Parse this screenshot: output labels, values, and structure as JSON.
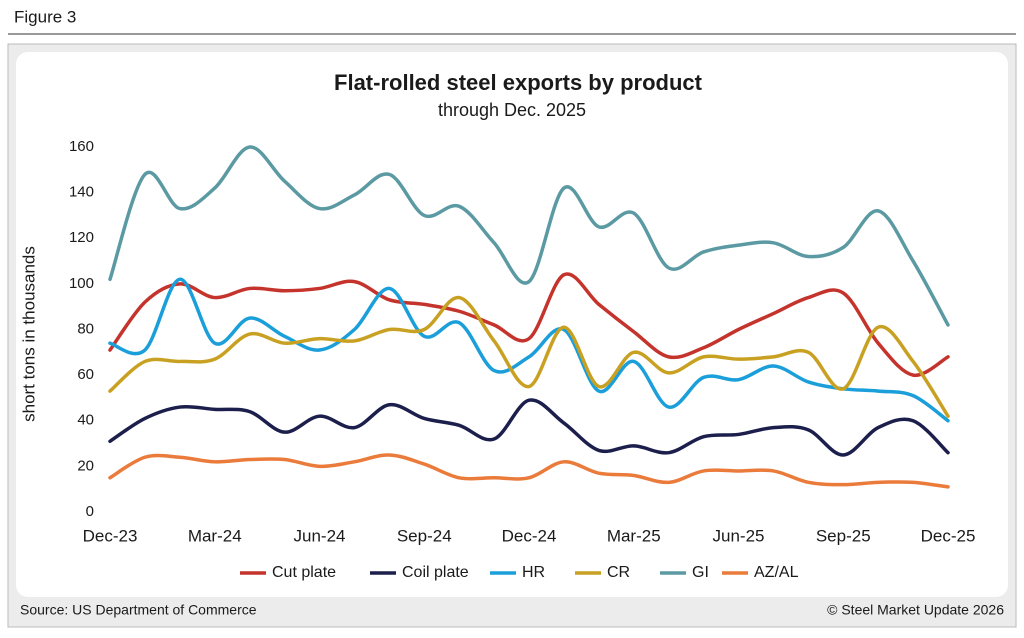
{
  "figure_label": "Figure 3",
  "source": "Source: US Department of Commerce",
  "copyright": "© Steel Market Update 2026",
  "chart_data": {
    "type": "line",
    "title": "Flat-rolled steel exports by product",
    "subtitle": "through Dec. 2025",
    "y_label": "short tons in thousands",
    "categories": [
      "Dec-23",
      null,
      null,
      "Mar-24",
      null,
      null,
      "Jun-24",
      null,
      null,
      "Sep-24",
      null,
      null,
      "Dec-24",
      null,
      null,
      "Mar-25",
      null,
      null,
      "Jun-25",
      null,
      null,
      "Sep-25",
      null,
      null,
      "Dec-25"
    ],
    "ylim": [
      0,
      160
    ],
    "yticks": [
      0,
      20,
      40,
      60,
      80,
      100,
      120,
      140,
      160
    ],
    "grid": false,
    "legend": "bottom",
    "series": [
      {
        "name": "Cut plate",
        "color": "#c5342c",
        "values": [
          71,
          92,
          100,
          94,
          98,
          97,
          98,
          101,
          93,
          91,
          88,
          82,
          76,
          104,
          91,
          79,
          68,
          72,
          80,
          87,
          94,
          96,
          74,
          60,
          68
        ]
      },
      {
        "name": "Coil plate",
        "color": "#1c1f4c",
        "values": [
          31,
          41,
          46,
          45,
          44,
          35,
          42,
          37,
          47,
          41,
          38,
          32,
          49,
          39,
          27,
          29,
          26,
          33,
          34,
          37,
          36,
          25,
          37,
          40,
          26
        ]
      },
      {
        "name": "HR",
        "color": "#1b9fdb",
        "values": [
          74,
          71,
          102,
          74,
          85,
          77,
          71,
          80,
          98,
          77,
          83,
          62,
          68,
          80,
          53,
          66,
          46,
          59,
          58,
          64,
          57,
          54,
          53,
          51,
          40
        ]
      },
      {
        "name": "CR",
        "color": "#c9a122",
        "values": [
          53,
          66,
          66,
          67,
          78,
          74,
          76,
          75,
          80,
          80,
          94,
          75,
          55,
          81,
          55,
          70,
          61,
          68,
          67,
          68,
          70,
          54,
          81,
          66,
          42
        ]
      },
      {
        "name": "GI",
        "color": "#5b9aa3",
        "values": [
          102,
          148,
          133,
          142,
          160,
          145,
          133,
          139,
          148,
          130,
          134,
          118,
          101,
          142,
          125,
          131,
          107,
          114,
          117,
          118,
          112,
          116,
          132,
          110,
          82
        ]
      },
      {
        "name": "AZ/AL",
        "color": "#ea7b3b",
        "values": [
          15,
          24,
          24,
          22,
          23,
          23,
          20,
          22,
          25,
          21,
          15,
          15,
          15,
          22,
          17,
          16,
          13,
          18,
          18,
          18,
          13,
          12,
          13,
          13,
          11
        ]
      }
    ]
  }
}
